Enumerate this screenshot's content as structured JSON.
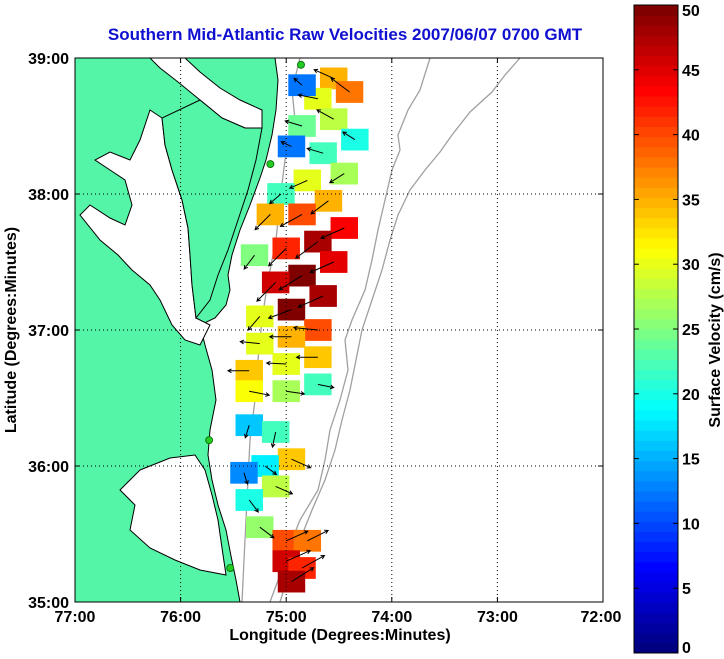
{
  "chart_data": {
    "type": "heatmap",
    "title": "Southern Mid-Atlantic Raw Velocities 2007/06/07 0700 GMT",
    "xlabel": "Longitude (Degrees:Minutes)",
    "ylabel": "Latitude (Degrees:Minutes)",
    "colorbar_label": "Surface Velocity (cm/s)",
    "x_ticks": [
      "77:00",
      "76:00",
      "75:00",
      "74:00",
      "73:00",
      "72:00"
    ],
    "y_ticks": [
      "39:00",
      "38:00",
      "37:00",
      "36:00",
      "35:00"
    ],
    "colorbar_ticks": [
      "0",
      "5",
      "10",
      "15",
      "20",
      "25",
      "30",
      "35",
      "40",
      "45",
      "50"
    ],
    "xlim": [
      -77,
      -72
    ],
    "ylim": [
      35,
      39
    ],
    "clim": [
      0,
      50
    ],
    "grid": true,
    "colormap": "jet",
    "land_color": "#55f5a8",
    "marker_color": "#22cc22",
    "stations": [
      {
        "lon": -74.86,
        "lat": 38.95
      },
      {
        "lon": -75.15,
        "lat": 38.22
      },
      {
        "lon": -75.73,
        "lat": 36.19
      },
      {
        "lon": -75.53,
        "lat": 35.25
      }
    ],
    "field": [
      {
        "lon": -74.55,
        "lat": 38.85,
        "speed": 35,
        "u": -0.9,
        "v": 0.4
      },
      {
        "lon": -74.4,
        "lat": 38.75,
        "speed": 38,
        "u": -0.8,
        "v": 0.6
      },
      {
        "lon": -74.7,
        "lat": 38.7,
        "speed": 30,
        "u": -1.0,
        "v": 0.2
      },
      {
        "lon": -74.85,
        "lat": 38.8,
        "speed": 12,
        "u": -0.7,
        "v": 0.6
      },
      {
        "lon": -74.55,
        "lat": 38.55,
        "speed": 28,
        "u": -0.9,
        "v": 0.5
      },
      {
        "lon": -74.85,
        "lat": 38.5,
        "speed": 24,
        "u": -1.0,
        "v": 0.3
      },
      {
        "lon": -74.35,
        "lat": 38.4,
        "speed": 20,
        "u": -0.8,
        "v": 0.5
      },
      {
        "lon": -74.95,
        "lat": 38.35,
        "speed": 12,
        "u": -0.9,
        "v": 0.4
      },
      {
        "lon": -74.65,
        "lat": 38.3,
        "speed": 22,
        "u": -1.0,
        "v": 0.3
      },
      {
        "lon": -74.45,
        "lat": 38.15,
        "speed": 27,
        "u": -0.8,
        "v": -0.5
      },
      {
        "lon": -74.8,
        "lat": 38.1,
        "speed": 30,
        "u": -0.9,
        "v": -0.4
      },
      {
        "lon": -75.05,
        "lat": 38.0,
        "speed": 22,
        "u": -0.7,
        "v": -0.6
      },
      {
        "lon": -74.6,
        "lat": 37.95,
        "speed": 35,
        "u": -0.8,
        "v": -0.6
      },
      {
        "lon": -74.85,
        "lat": 37.85,
        "speed": 40,
        "u": -0.9,
        "v": -0.5
      },
      {
        "lon": -75.15,
        "lat": 37.85,
        "speed": 35,
        "u": -0.7,
        "v": -0.7
      },
      {
        "lon": -74.45,
        "lat": 37.75,
        "speed": 44,
        "u": -0.9,
        "v": -0.4
      },
      {
        "lon": -74.7,
        "lat": 37.65,
        "speed": 48,
        "u": -0.8,
        "v": -0.6
      },
      {
        "lon": -75.0,
        "lat": 37.6,
        "speed": 42,
        "u": -0.7,
        "v": -0.7
      },
      {
        "lon": -75.3,
        "lat": 37.55,
        "speed": 25,
        "u": -0.6,
        "v": -0.8
      },
      {
        "lon": -74.55,
        "lat": 37.5,
        "speed": 45,
        "u": -0.9,
        "v": -0.4
      },
      {
        "lon": -74.85,
        "lat": 37.4,
        "speed": 50,
        "u": -0.8,
        "v": -0.5
      },
      {
        "lon": -75.1,
        "lat": 37.35,
        "speed": 46,
        "u": -0.7,
        "v": -0.7
      },
      {
        "lon": -74.65,
        "lat": 37.25,
        "speed": 48,
        "u": -0.9,
        "v": -0.4
      },
      {
        "lon": -74.95,
        "lat": 37.15,
        "speed": 50,
        "u": -0.8,
        "v": -0.3
      },
      {
        "lon": -75.25,
        "lat": 37.1,
        "speed": 30,
        "u": -0.6,
        "v": -0.7
      },
      {
        "lon": -74.7,
        "lat": 37.0,
        "speed": 40,
        "u": -1.0,
        "v": 0.1
      },
      {
        "lon": -74.95,
        "lat": 36.95,
        "speed": 35,
        "u": -1.0,
        "v": 0.0
      },
      {
        "lon": -75.25,
        "lat": 36.9,
        "speed": 30,
        "u": -1.0,
        "v": 0.1
      },
      {
        "lon": -74.7,
        "lat": 36.8,
        "speed": 34,
        "u": -1.0,
        "v": 0.0
      },
      {
        "lon": -75.0,
        "lat": 36.75,
        "speed": 30,
        "u": -1.0,
        "v": 0.05
      },
      {
        "lon": -75.35,
        "lat": 36.7,
        "speed": 34,
        "u": -1.0,
        "v": 0.0
      },
      {
        "lon": -74.7,
        "lat": 36.6,
        "speed": 22,
        "u": 1.0,
        "v": -0.2
      },
      {
        "lon": -75.0,
        "lat": 36.55,
        "speed": 27,
        "u": 1.0,
        "v": -0.15
      },
      {
        "lon": -75.35,
        "lat": 36.55,
        "speed": 31,
        "u": 1.0,
        "v": -0.2
      },
      {
        "lon": -75.35,
        "lat": 36.3,
        "speed": 16,
        "u": -0.3,
        "v": -0.95
      },
      {
        "lon": -75.1,
        "lat": 36.25,
        "speed": 22,
        "u": -0.2,
        "v": -0.95
      },
      {
        "lon": -74.95,
        "lat": 36.05,
        "speed": 34,
        "u": 0.9,
        "v": -0.4
      },
      {
        "lon": -75.2,
        "lat": 36.0,
        "speed": 18,
        "u": 0.8,
        "v": -0.6
      },
      {
        "lon": -75.4,
        "lat": 35.95,
        "speed": 13,
        "u": 0.3,
        "v": -0.95
      },
      {
        "lon": -75.1,
        "lat": 35.85,
        "speed": 28,
        "u": 0.9,
        "v": -0.4
      },
      {
        "lon": -75.35,
        "lat": 35.75,
        "speed": 20,
        "u": 0.6,
        "v": -0.8
      },
      {
        "lon": -75.25,
        "lat": 35.55,
        "speed": 26,
        "u": 0.8,
        "v": -0.6
      },
      {
        "lon": -75.0,
        "lat": 35.45,
        "speed": 40,
        "u": 0.9,
        "v": 0.4
      },
      {
        "lon": -74.8,
        "lat": 35.45,
        "speed": 38,
        "u": 0.9,
        "v": 0.45
      },
      {
        "lon": -75.0,
        "lat": 35.3,
        "speed": 46,
        "u": 0.9,
        "v": 0.4
      },
      {
        "lon": -74.85,
        "lat": 35.25,
        "speed": 42,
        "u": 0.9,
        "v": 0.5
      },
      {
        "lon": -74.95,
        "lat": 35.15,
        "speed": 48,
        "u": 0.8,
        "v": 0.5
      }
    ]
  }
}
